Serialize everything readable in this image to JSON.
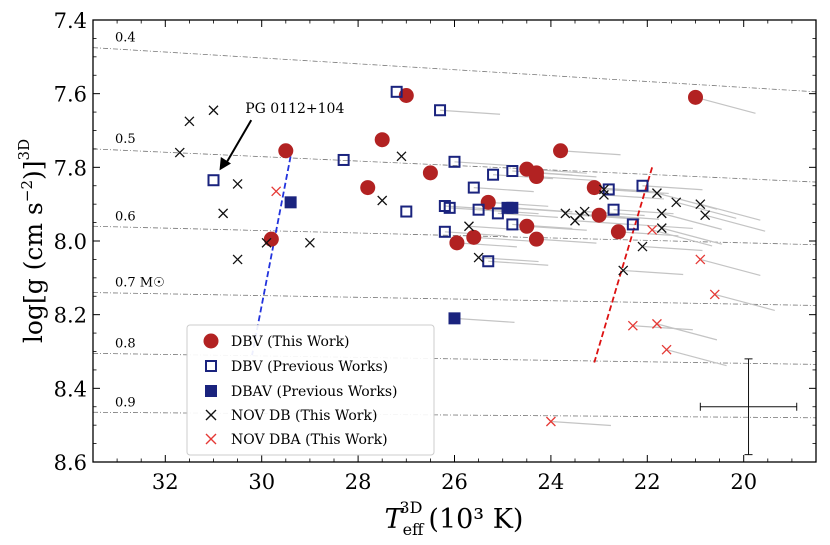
{
  "chart_data": {
    "type": "scatter",
    "xlabel_main": "T",
    "xlabel_sub": "eff",
    "xlabel_sup": "3D",
    "xlabel_units": "(10³ K)",
    "ylabel_main": "log[g (cm s",
    "ylabel_exp": "−2",
    "ylabel_close": ")]",
    "ylabel_sup": "3D",
    "xlim": [
      33.5,
      18.5
    ],
    "ylim": [
      8.6,
      7.4
    ],
    "xticks": [
      32,
      30,
      28,
      26,
      24,
      22,
      20
    ],
    "yticks": [
      7.4,
      7.6,
      7.8,
      8.0,
      8.2,
      8.4,
      8.6
    ],
    "xtick_labels": [
      "32",
      "30",
      "28",
      "26",
      "24",
      "22",
      "20"
    ],
    "ytick_labels": [
      "7.4",
      "7.6",
      "7.8",
      "8.0",
      "8.2",
      "8.4",
      "8.6"
    ],
    "mass_tracks": [
      {
        "label": "0.4",
        "y_left": 7.475,
        "y_right": 7.595
      },
      {
        "label": "0.5",
        "y_left": 7.75,
        "y_right": 7.84
      },
      {
        "label": "0.6",
        "y_left": 7.96,
        "y_right": 8.01
      },
      {
        "label": "0.7 M☉",
        "y_left": 8.14,
        "y_right": 8.175
      },
      {
        "label": "0.8",
        "y_left": 8.305,
        "y_right": 8.335
      },
      {
        "label": "0.9",
        "y_left": 8.465,
        "y_right": 8.48
      }
    ],
    "annotation": {
      "text": "PG 0112+104",
      "x": 30.3,
      "y": 7.68,
      "target_x": 31.0,
      "target_y": 7.83
    },
    "instability_strip": {
      "blue_edge": [
        [
          29.4,
          7.77
        ],
        [
          30.2,
          8.31
        ]
      ],
      "red_edge": [
        [
          21.9,
          7.8
        ],
        [
          23.1,
          8.33
        ]
      ],
      "blue_color": "#2233dd",
      "red_color": "#dd1111"
    },
    "error_bar": {
      "x": 19.9,
      "y": 8.45,
      "xerr": 1.0,
      "yerr": 0.13
    },
    "legend_position": "lower-left",
    "colors": {
      "dbv": "#b22222",
      "prev": "#1a237e",
      "nov_dba": "#e53935",
      "nov_db": "#111111"
    },
    "series": [
      {
        "name": "DBV (This Work)",
        "marker": "filled-circle",
        "points": [
          [
            27.0,
            7.605
          ],
          [
            21.0,
            7.61
          ],
          [
            29.5,
            7.755
          ],
          [
            27.5,
            7.725
          ],
          [
            23.8,
            7.755
          ],
          [
            27.8,
            7.855
          ],
          [
            26.5,
            7.815
          ],
          [
            24.5,
            7.805
          ],
          [
            24.3,
            7.825
          ],
          [
            24.3,
            7.815
          ],
          [
            23.1,
            7.855
          ],
          [
            23.0,
            7.93
          ],
          [
            25.3,
            7.895
          ],
          [
            22.6,
            7.975
          ],
          [
            24.5,
            7.96
          ],
          [
            24.3,
            7.995
          ],
          [
            25.6,
            7.99
          ],
          [
            25.95,
            8.005
          ],
          [
            29.8,
            7.995
          ]
        ]
      },
      {
        "name": "DBV (Previous Works)",
        "marker": "open-square",
        "points": [
          [
            27.2,
            7.595
          ],
          [
            26.3,
            7.645
          ],
          [
            31.0,
            7.835
          ],
          [
            28.3,
            7.78
          ],
          [
            26.0,
            7.785
          ],
          [
            25.6,
            7.855
          ],
          [
            25.2,
            7.82
          ],
          [
            24.8,
            7.81
          ],
          [
            26.1,
            7.91
          ],
          [
            26.2,
            7.905
          ],
          [
            25.5,
            7.915
          ],
          [
            25.1,
            7.925
          ],
          [
            27.0,
            7.92
          ],
          [
            24.8,
            7.955
          ],
          [
            26.2,
            7.975
          ],
          [
            25.3,
            8.055
          ],
          [
            22.8,
            7.86
          ],
          [
            22.1,
            7.85
          ],
          [
            22.7,
            7.915
          ],
          [
            22.3,
            7.955
          ]
        ]
      },
      {
        "name": "DBAV (Previous Works)",
        "marker": "filled-square",
        "points": [
          [
            29.4,
            7.895
          ],
          [
            24.9,
            7.91
          ],
          [
            24.8,
            7.91
          ],
          [
            26.0,
            8.21
          ]
        ]
      },
      {
        "name": "NOV DB (This Work)",
        "marker": "x",
        "points": [
          [
            31.5,
            7.675
          ],
          [
            31.0,
            7.645
          ],
          [
            31.7,
            7.76
          ],
          [
            30.5,
            7.845
          ],
          [
            30.8,
            7.925
          ],
          [
            30.5,
            8.05
          ],
          [
            29.9,
            8.005
          ],
          [
            29.0,
            8.005
          ],
          [
            27.5,
            7.89
          ],
          [
            27.1,
            7.77
          ],
          [
            25.7,
            7.96
          ],
          [
            25.5,
            8.045
          ],
          [
            23.7,
            7.925
          ],
          [
            23.5,
            7.945
          ],
          [
            23.4,
            7.93
          ],
          [
            23.3,
            7.92
          ],
          [
            22.9,
            7.86
          ],
          [
            22.9,
            7.875
          ],
          [
            21.8,
            7.87
          ],
          [
            21.7,
            7.925
          ],
          [
            21.4,
            7.895
          ],
          [
            21.7,
            7.965
          ],
          [
            22.1,
            8.015
          ],
          [
            20.9,
            7.9
          ],
          [
            20.8,
            7.93
          ],
          [
            22.5,
            8.08
          ]
        ]
      },
      {
        "name": "NOV DBA (This Work)",
        "marker": "x",
        "points": [
          [
            29.7,
            7.865
          ],
          [
            21.9,
            7.97
          ],
          [
            20.9,
            8.05
          ],
          [
            20.6,
            8.145
          ],
          [
            22.3,
            8.23
          ],
          [
            21.8,
            8.225
          ],
          [
            21.6,
            8.295
          ],
          [
            24.0,
            8.49
          ]
        ]
      }
    ]
  },
  "legend": {
    "dbv_label": "DBV (This Work)",
    "prev_label": "DBV (Previous Works)",
    "dbav_label": "DBAV (Previous Works)",
    "nov_db_label": "NOV DB (This Work)",
    "nov_dba_label": "NOV DBA (This Work)"
  }
}
